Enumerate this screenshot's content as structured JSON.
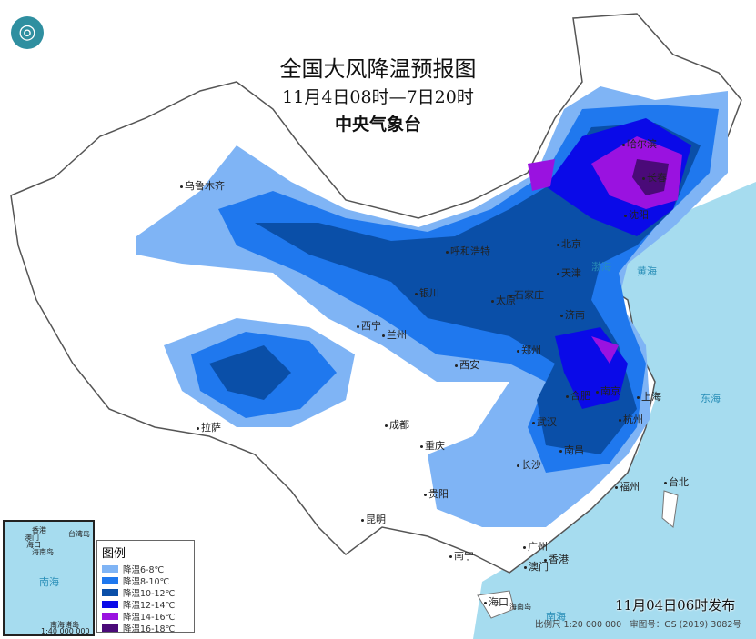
{
  "title": "全国大风降温预报图",
  "period": "11月4日08时—7日20时",
  "issuer": "中央气象台",
  "logo_icon": "cma-logo-icon",
  "colors": {
    "sea": "#a6dcef",
    "land": "#ffffff"
  },
  "legend": {
    "title": "图例",
    "items": [
      {
        "label": "降温6-8℃",
        "color": "#7fb4f5"
      },
      {
        "label": "降温8-10℃",
        "color": "#1f78ee"
      },
      {
        "label": "降温10-12℃",
        "color": "#0a4fa8"
      },
      {
        "label": "降温12-14℃",
        "color": "#0a0ae8"
      },
      {
        "label": "降温14-16℃",
        "color": "#9a12e0"
      },
      {
        "label": "降温16-18℃",
        "color": "#4a0a78"
      }
    ]
  },
  "cities": [
    "乌鲁木齐",
    "呼和浩特",
    "北京",
    "天津",
    "石家庄",
    "太原",
    "银川",
    "西宁",
    "兰州",
    "济南",
    "郑州",
    "西安",
    "合肥",
    "南京",
    "上海",
    "杭州",
    "武汉",
    "南昌",
    "长沙",
    "成都",
    "重庆",
    "拉萨",
    "贵阳",
    "昆明",
    "福州",
    "台北",
    "南宁",
    "广州",
    "香港",
    "澳门",
    "海口",
    "长春",
    "沈阳",
    "哈尔滨"
  ],
  "seas": [
    "黄海",
    "东海",
    "南海",
    "渤海"
  ],
  "inset": {
    "labels": [
      "香港",
      "澳门",
      "台湾岛",
      "海口",
      "海南岛",
      "南海",
      "南海诸岛"
    ],
    "scale": "1:40 000 000"
  },
  "published": "11月04日06时发布",
  "footer": {
    "scale": "比例尺 1:20 000 000",
    "map_number": "审图号：GS (2019) 3082号"
  },
  "hainan_label": "海南岛"
}
